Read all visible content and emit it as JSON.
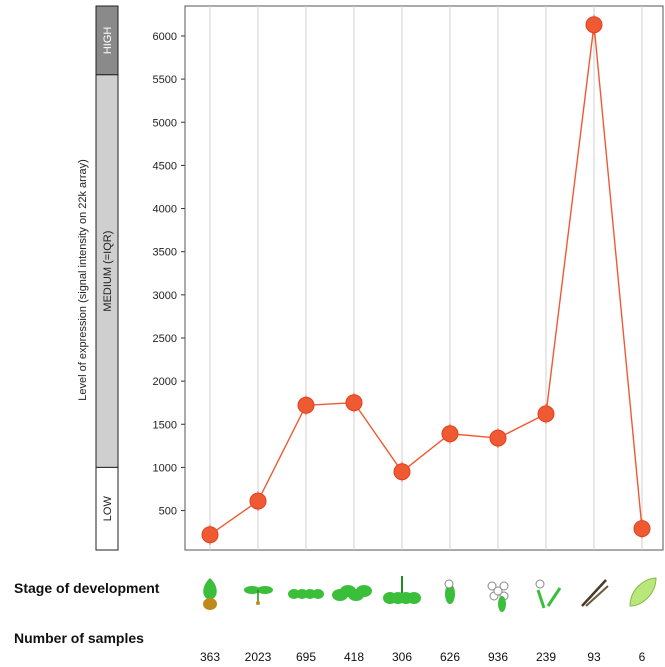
{
  "chart_data": {
    "type": "line",
    "ylabel": "Level of expression (signal intensity on 22k array)",
    "ylim": [
      0,
      6400
    ],
    "yticks": [
      500,
      1000,
      1500,
      2000,
      2500,
      3000,
      3500,
      4000,
      4500,
      5000,
      5500,
      6000
    ],
    "bands": [
      {
        "label": "HIGH",
        "from": 5550,
        "to": 6400,
        "color": "#8a8a8a",
        "text_color": "#ffffff"
      },
      {
        "label": "MEDIUM (=IQR)",
        "from": 1000,
        "to": 5550,
        "color": "#cfcfcf",
        "text_color": "#222222"
      },
      {
        "label": "LOW",
        "from": 0,
        "to": 1000,
        "color": "#ffffff",
        "text_color": "#222222"
      }
    ],
    "series": [
      {
        "values": [
          220,
          610,
          1720,
          1750,
          950,
          1390,
          1340,
          1620,
          6130,
          290
        ],
        "color": "#f05a32"
      }
    ],
    "stages": [
      "seed",
      "seedling",
      "young rosette",
      "developed rosette",
      "bolting",
      "young flower",
      "developed flower",
      "flowers and siliques",
      "mature siliques",
      "senescence"
    ],
    "sample_counts": [
      363,
      2023,
      695,
      418,
      306,
      626,
      936,
      239,
      93,
      6
    ]
  },
  "labels": {
    "stage_title": "Stage of development",
    "samples_title": "Number of samples"
  },
  "sample_counts_text": [
    "363",
    "2023",
    "695",
    "418",
    "306",
    "626",
    "936",
    "239",
    "93",
    "6"
  ]
}
